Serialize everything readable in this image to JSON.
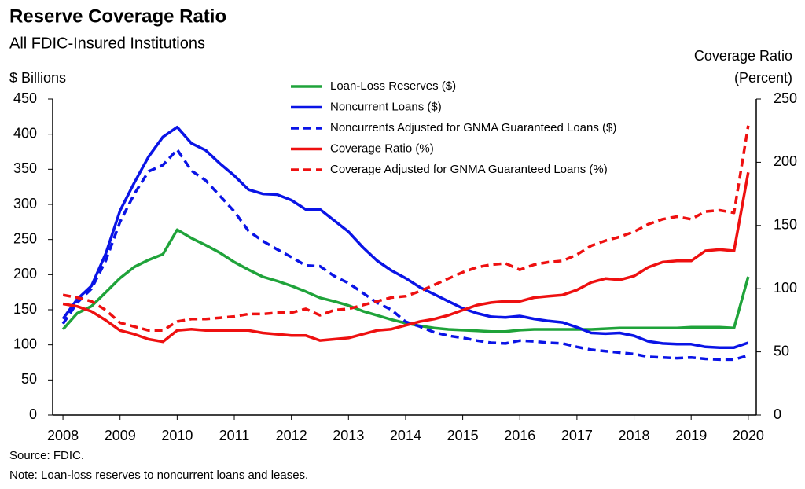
{
  "chart_data": {
    "type": "line",
    "title": "Reserve Coverage Ratio",
    "subtitle": "All FDIC-Insured Institutions",
    "ylabel": "$ Billions",
    "y2label": [
      "Coverage Ratio",
      "(Percent)"
    ],
    "source": "Source:  FDIC.",
    "note": "Note: Loan-loss reserves to noncurrent  loans and leases.",
    "x": [
      2008,
      2008.25,
      2008.5,
      2008.75,
      2009,
      2009.25,
      2009.5,
      2009.75,
      2010,
      2010.25,
      2010.5,
      2010.75,
      2011,
      2011.25,
      2011.5,
      2011.75,
      2012,
      2012.25,
      2012.5,
      2012.75,
      2013,
      2013.25,
      2013.5,
      2013.75,
      2014,
      2014.25,
      2014.5,
      2014.75,
      2015,
      2015.25,
      2015.5,
      2015.75,
      2016,
      2016.25,
      2016.5,
      2016.75,
      2017,
      2017.25,
      2017.5,
      2017.75,
      2018,
      2018.25,
      2018.5,
      2018.75,
      2019,
      2019.25,
      2019.5,
      2019.75,
      2020
    ],
    "xlim": [
      2007.82,
      2020.14
    ],
    "xticks": [
      2008,
      2009,
      2010,
      2011,
      2012,
      2013,
      2014,
      2015,
      2016,
      2017,
      2018,
      2019,
      2020
    ],
    "ylim": [
      0,
      450
    ],
    "yticks": [
      0,
      50,
      100,
      150,
      200,
      250,
      300,
      350,
      400,
      450
    ],
    "y2lim": [
      0,
      250
    ],
    "y2ticks": [
      0,
      50,
      100,
      150,
      200,
      250
    ],
    "grid": false,
    "series": [
      {
        "name": "Loan-Loss Reserves  ($)",
        "color": "#1fa33a",
        "dashed": false,
        "values": [
          122,
          145,
          155,
          175,
          195,
          211,
          221,
          229,
          264,
          252,
          242,
          231,
          218,
          207,
          197,
          191,
          184,
          176,
          167,
          162,
          156,
          148,
          142,
          136,
          131,
          127,
          124,
          122,
          121,
          120,
          119,
          119,
          121,
          122,
          122,
          122,
          122,
          122,
          123,
          124,
          124,
          124,
          124,
          124,
          125,
          125,
          125,
          124,
          197
        ]
      },
      {
        "name": "Noncurrent Loans ($)",
        "color": "#0a14e6",
        "dashed": false,
        "values": [
          137,
          165,
          184,
          230,
          291,
          331,
          368,
          396,
          410,
          387,
          377,
          358,
          341,
          321,
          315,
          314,
          306,
          293,
          293,
          277,
          261,
          239,
          220,
          206,
          195,
          182,
          172,
          162,
          152,
          145,
          140,
          139,
          141,
          137,
          134,
          132,
          125,
          117,
          116,
          117,
          113,
          105,
          102,
          101,
          101,
          97,
          96,
          96,
          103
        ]
      },
      {
        "name": "Noncurrents Adjusted for GNMA Guaranteed Loans ($)",
        "color": "#0a14e6",
        "dashed": true,
        "values": [
          130,
          160,
          180,
          220,
          275,
          315,
          347,
          356,
          378,
          348,
          334,
          312,
          290,
          262,
          248,
          236,
          225,
          213,
          212,
          198,
          188,
          174,
          160,
          150,
          133,
          126,
          118,
          113,
          110,
          106,
          103,
          102,
          106,
          105,
          103,
          102,
          97,
          93,
          91,
          89,
          87,
          83,
          82,
          81,
          82,
          80,
          79,
          79,
          85
        ]
      },
      {
        "name": "Coverage Ratio (%)",
        "color": "#ee1010",
        "dashed": false,
        "axis": "y2",
        "values": [
          88,
          86,
          82,
          75,
          67,
          64,
          60,
          58,
          67,
          68,
          67,
          67,
          67,
          67,
          65,
          64,
          63,
          63,
          59,
          60,
          61,
          64,
          67,
          68,
          71,
          74,
          76,
          79,
          83,
          87,
          89,
          90,
          90,
          93,
          94,
          95,
          99,
          105,
          108,
          107,
          110,
          117,
          121,
          122,
          122,
          130,
          131,
          130,
          192
        ]
      },
      {
        "name": "Coverage Adjusted for GNMA Guaranteed Loans (%)",
        "color": "#ee1010",
        "dashed": true,
        "axis": "y2",
        "values": [
          95,
          93,
          90,
          83,
          73,
          70,
          67,
          67,
          74,
          76,
          76,
          77,
          78,
          80,
          80,
          81,
          81,
          84,
          79,
          83,
          84,
          87,
          90,
          93,
          94,
          98,
          103,
          108,
          113,
          117,
          119,
          120,
          115,
          119,
          121,
          122,
          127,
          134,
          138,
          141,
          145,
          151,
          155,
          157,
          155,
          161,
          162,
          160,
          229
        ]
      }
    ]
  }
}
